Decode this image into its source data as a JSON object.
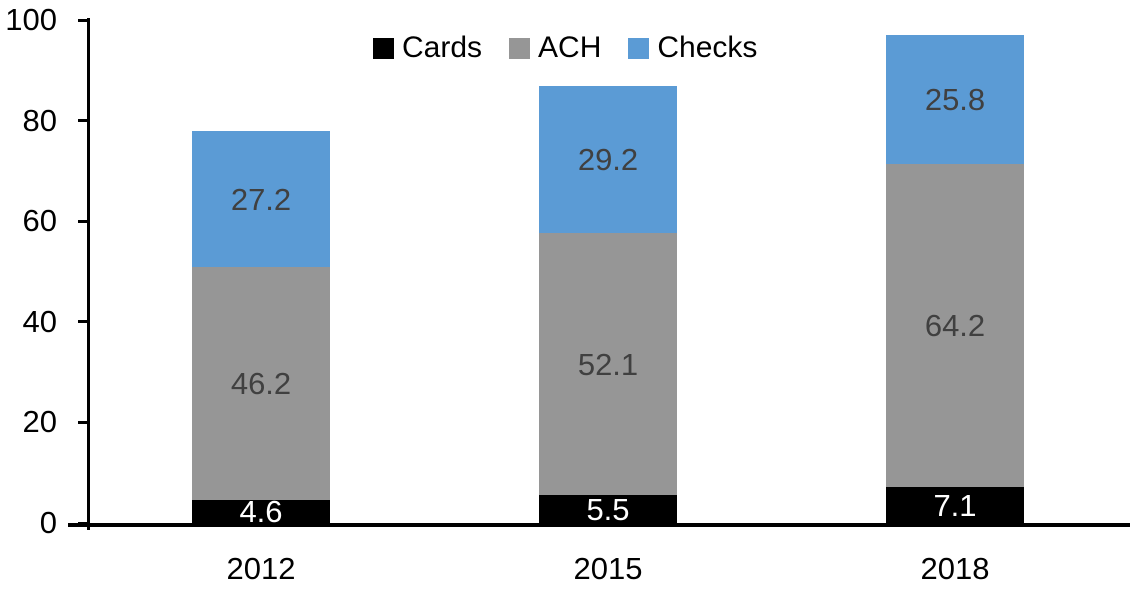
{
  "chart_data": {
    "type": "bar",
    "stacked": true,
    "title": "",
    "categories": [
      "2012",
      "2015",
      "2018"
    ],
    "series": [
      {
        "name": "Cards",
        "color": "#000000",
        "label_color": "#ffffff",
        "values": [
          4.6,
          5.5,
          7.1
        ]
      },
      {
        "name": "ACH",
        "color": "#969696",
        "label_color": "#404040",
        "values": [
          46.2,
          52.1,
          64.2
        ]
      },
      {
        "name": "Checks",
        "color": "#5b9bd5",
        "label_color": "#404040",
        "values": [
          27.2,
          29.2,
          25.8
        ]
      }
    ],
    "ylim": [
      0,
      100
    ],
    "yticks": [
      0,
      20,
      40,
      60,
      80,
      100
    ],
    "legend_position": "top-center",
    "grid": false,
    "axis_color": "#000000",
    "background": "#ffffff"
  }
}
